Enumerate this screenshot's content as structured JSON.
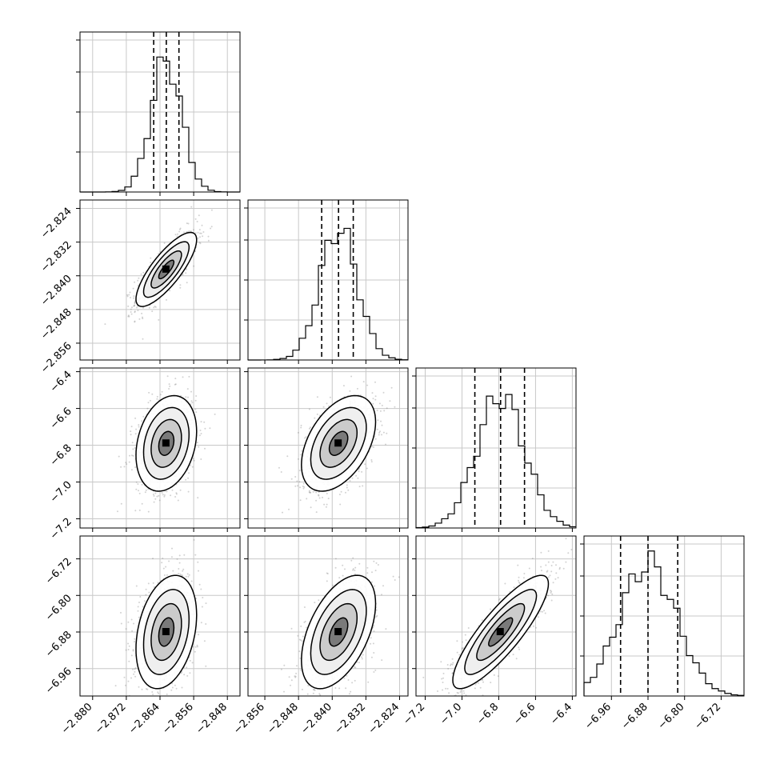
{
  "chart_data": {
    "type": "corner",
    "title": "",
    "grid": true,
    "parameters": [
      {
        "range": [
          -2.883,
          -2.845
        ],
        "median": -2.8625,
        "q16": -2.8655,
        "q84": -2.8595,
        "std": 0.0036,
        "ticks": [
          -2.88,
          -2.872,
          -2.864,
          -2.856,
          -2.848
        ],
        "tick_labels": [
          "−2.880",
          "−2.872",
          "−2.864",
          "−2.856",
          "−2.848"
        ]
      },
      {
        "range": [
          -2.86,
          -2.822
        ],
        "median": -2.8385,
        "q16": -2.8425,
        "q84": -2.835,
        "std": 0.0044,
        "ticks": [
          -2.856,
          -2.848,
          -2.84,
          -2.832,
          -2.824
        ],
        "tick_labels": [
          "−2.856",
          "−2.848",
          "−2.840",
          "−2.832",
          "−2.824"
        ]
      },
      {
        "range": [
          -7.25,
          -6.38
        ],
        "median": -6.79,
        "q16": -6.93,
        "q84": -6.66,
        "std": 0.13,
        "ticks": [
          -7.2,
          -7.0,
          -6.8,
          -6.6,
          -6.4
        ],
        "tick_labels": [
          "−7.2",
          "−7.0",
          "−6.8",
          "−6.6",
          "−6.4"
        ]
      },
      {
        "range": [
          -7.02,
          -6.67
        ],
        "median": -6.88,
        "q16": -6.94,
        "q84": -6.815,
        "std": 0.062,
        "ticks": [
          -6.96,
          -6.88,
          -6.8,
          -6.72
        ],
        "tick_labels": [
          "−6.96",
          "−6.88",
          "−6.80",
          "−6.72"
        ]
      }
    ],
    "correlations": [
      [
        0,
        1,
        0.8
      ],
      [
        0,
        2,
        0.25
      ],
      [
        0,
        3,
        0.3
      ],
      [
        1,
        2,
        0.45
      ],
      [
        1,
        3,
        0.5
      ],
      [
        2,
        3,
        0.85
      ]
    ],
    "colors": {
      "frame": "#000000",
      "grid": "#c8c8c8",
      "hist": "#000000",
      "points": "#7f7f7f",
      "contour": "#000000"
    }
  }
}
